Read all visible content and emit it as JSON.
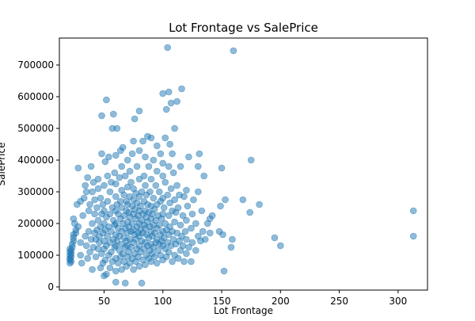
{
  "chart_data": {
    "type": "scatter",
    "title": "Lot Frontage vs SalePrice",
    "xlabel": "Lot Frontage",
    "ylabel": "SalePrice",
    "xlim": [
      12,
      325
    ],
    "ylim": [
      -10000,
      785000
    ],
    "xticks": [
      50,
      100,
      150,
      200,
      250,
      300
    ],
    "yticks": [
      0,
      100000,
      200000,
      300000,
      400000,
      500000,
      600000,
      700000
    ],
    "grid": false,
    "point_color": "#1f77b4",
    "point_opacity": 0.5,
    "points": [
      [
        21,
        75000
      ],
      [
        21,
        85000
      ],
      [
        21,
        90000
      ],
      [
        21,
        100000
      ],
      [
        21,
        110000
      ],
      [
        21,
        120000
      ],
      [
        22,
        80000
      ],
      [
        22,
        95000
      ],
      [
        22,
        105000
      ],
      [
        22,
        115000
      ],
      [
        23,
        125000
      ],
      [
        23,
        135000
      ],
      [
        24,
        215000
      ],
      [
        24,
        145000
      ],
      [
        24,
        155000
      ],
      [
        24,
        165000
      ],
      [
        25,
        200000
      ],
      [
        26,
        170000
      ],
      [
        26,
        180000
      ],
      [
        27,
        260000
      ],
      [
        28,
        190000
      ],
      [
        28,
        375000
      ],
      [
        30,
        100000
      ],
      [
        30,
        140000
      ],
      [
        30,
        270000
      ],
      [
        31,
        75000
      ],
      [
        32,
        225000
      ],
      [
        33,
        280000
      ],
      [
        34,
        160000
      ],
      [
        34,
        320000
      ],
      [
        35,
        130000
      ],
      [
        35,
        300000
      ],
      [
        36,
        90000
      ],
      [
        36,
        345000
      ],
      [
        37,
        175000
      ],
      [
        37,
        240000
      ],
      [
        38,
        110000
      ],
      [
        38,
        260000
      ],
      [
        39,
        150000
      ],
      [
        39,
        380000
      ],
      [
        40,
        55000
      ],
      [
        40,
        200000
      ],
      [
        40,
        300000
      ],
      [
        41,
        125000
      ],
      [
        41,
        330000
      ],
      [
        42,
        170000
      ],
      [
        42,
        230000
      ],
      [
        42,
        275000
      ],
      [
        43,
        95000
      ],
      [
        43,
        150000
      ],
      [
        44,
        180000
      ],
      [
        44,
        250000
      ],
      [
        45,
        120000
      ],
      [
        45,
        210000
      ],
      [
        45,
        310000
      ],
      [
        45,
        340000
      ],
      [
        46,
        140000
      ],
      [
        46,
        160000
      ],
      [
        47,
        60000
      ],
      [
        47,
        190000
      ],
      [
        47,
        280000
      ],
      [
        48,
        105000
      ],
      [
        48,
        230000
      ],
      [
        48,
        420000
      ],
      [
        48,
        540000
      ],
      [
        49,
        75000
      ],
      [
        49,
        170000
      ],
      [
        49,
        260000
      ],
      [
        50,
        35000
      ],
      [
        50,
        120000
      ],
      [
        50,
        145000
      ],
      [
        50,
        200000
      ],
      [
        50,
        240000
      ],
      [
        50,
        320000
      ],
      [
        51,
        85000
      ],
      [
        51,
        180000
      ],
      [
        51,
        395000
      ],
      [
        52,
        40000
      ],
      [
        52,
        130000
      ],
      [
        52,
        220000
      ],
      [
        52,
        590000
      ],
      [
        53,
        160000
      ],
      [
        53,
        270000
      ],
      [
        53,
        350000
      ],
      [
        54,
        100000
      ],
      [
        54,
        190000
      ],
      [
        54,
        410000
      ],
      [
        55,
        60000
      ],
      [
        55,
        140000
      ],
      [
        55,
        230000
      ],
      [
        55,
        300000
      ],
      [
        56,
        110000
      ],
      [
        56,
        175000
      ],
      [
        56,
        330000
      ],
      [
        57,
        80000
      ],
      [
        57,
        250000
      ],
      [
        57,
        500000
      ],
      [
        58,
        150000
      ],
      [
        58,
        210000
      ],
      [
        58,
        545000
      ],
      [
        59,
        125000
      ],
      [
        59,
        195000
      ],
      [
        59,
        360000
      ],
      [
        60,
        15000
      ],
      [
        60,
        50000
      ],
      [
        60,
        90000
      ],
      [
        60,
        130000
      ],
      [
        60,
        165000
      ],
      [
        60,
        200000
      ],
      [
        60,
        240000
      ],
      [
        60,
        285000
      ],
      [
        60,
        325000
      ],
      [
        60,
        415000
      ],
      [
        61,
        145000
      ],
      [
        61,
        260000
      ],
      [
        61,
        500000
      ],
      [
        62,
        75000
      ],
      [
        62,
        185000
      ],
      [
        62,
        230000
      ],
      [
        63,
        115000
      ],
      [
        63,
        160000
      ],
      [
        63,
        345000
      ],
      [
        64,
        95000
      ],
      [
        64,
        215000
      ],
      [
        64,
        270000
      ],
      [
        64,
        430000
      ],
      [
        65,
        55000
      ],
      [
        65,
        135000
      ],
      [
        65,
        175000
      ],
      [
        65,
        250000
      ],
      [
        65,
        305000
      ],
      [
        65,
        380000
      ],
      [
        66,
        105000
      ],
      [
        66,
        200000
      ],
      [
        66,
        440000
      ],
      [
        67,
        80000
      ],
      [
        67,
        155000
      ],
      [
        67,
        225000
      ],
      [
        67,
        290000
      ],
      [
        68,
        12000
      ],
      [
        68,
        125000
      ],
      [
        68,
        185000
      ],
      [
        68,
        350000
      ],
      [
        69,
        65000
      ],
      [
        69,
        145000
      ],
      [
        69,
        240000
      ],
      [
        69,
        270000
      ],
      [
        70,
        95000
      ],
      [
        70,
        130000
      ],
      [
        70,
        170000
      ],
      [
        70,
        205000
      ],
      [
        70,
        260000
      ],
      [
        70,
        315000
      ],
      [
        70,
        400000
      ],
      [
        71,
        110000
      ],
      [
        71,
        190000
      ],
      [
        71,
        235000
      ],
      [
        72,
        75000
      ],
      [
        72,
        150000
      ],
      [
        72,
        220000
      ],
      [
        72,
        285000
      ],
      [
        72,
        365000
      ],
      [
        73,
        125000
      ],
      [
        73,
        175000
      ],
      [
        73,
        330000
      ],
      [
        74,
        90000
      ],
      [
        74,
        200000
      ],
      [
        74,
        255000
      ],
      [
        74,
        420000
      ],
      [
        75,
        55000
      ],
      [
        75,
        140000
      ],
      [
        75,
        180000
      ],
      [
        75,
        230000
      ],
      [
        75,
        275000
      ],
      [
        75,
        310000
      ],
      [
        75,
        460000
      ],
      [
        76,
        105000
      ],
      [
        76,
        165000
      ],
      [
        76,
        245000
      ],
      [
        76,
        530000
      ],
      [
        77,
        80000
      ],
      [
        77,
        150000
      ],
      [
        77,
        215000
      ],
      [
        77,
        295000
      ],
      [
        78,
        120000
      ],
      [
        78,
        190000
      ],
      [
        78,
        265000
      ],
      [
        78,
        380000
      ],
      [
        79,
        95000
      ],
      [
        79,
        170000
      ],
      [
        79,
        225000
      ],
      [
        80,
        65000
      ],
      [
        80,
        130000
      ],
      [
        80,
        160000
      ],
      [
        80,
        200000
      ],
      [
        80,
        240000
      ],
      [
        80,
        285000
      ],
      [
        80,
        340000
      ],
      [
        80,
        430000
      ],
      [
        80,
        555000
      ],
      [
        81,
        110000
      ],
      [
        81,
        180000
      ],
      [
        81,
        255000
      ],
      [
        82,
        12000
      ],
      [
        82,
        145000
      ],
      [
        82,
        210000
      ],
      [
        82,
        300000
      ],
      [
        83,
        85000
      ],
      [
        83,
        170000
      ],
      [
        83,
        230000
      ],
      [
        83,
        460000
      ],
      [
        84,
        120000
      ],
      [
        84,
        195000
      ],
      [
        84,
        270000
      ],
      [
        84,
        350000
      ],
      [
        85,
        70000
      ],
      [
        85,
        140000
      ],
      [
        85,
        185000
      ],
      [
        85,
        240000
      ],
      [
        85,
        320000
      ],
      [
        85,
        410000
      ],
      [
        86,
        100000
      ],
      [
        86,
        165000
      ],
      [
        86,
        220000
      ],
      [
        86,
        290000
      ],
      [
        87,
        130000
      ],
      [
        87,
        205000
      ],
      [
        87,
        260000
      ],
      [
        87,
        475000
      ],
      [
        88,
        90000
      ],
      [
        88,
        155000
      ],
      [
        88,
        235000
      ],
      [
        88,
        380000
      ],
      [
        89,
        115000
      ],
      [
        89,
        190000
      ],
      [
        89,
        300000
      ],
      [
        90,
        80000
      ],
      [
        90,
        135000
      ],
      [
        90,
        175000
      ],
      [
        90,
        215000
      ],
      [
        90,
        255000
      ],
      [
        90,
        340000
      ],
      [
        90,
        470000
      ],
      [
        91,
        105000
      ],
      [
        91,
        160000
      ],
      [
        91,
        230000
      ],
      [
        92,
        125000
      ],
      [
        92,
        195000
      ],
      [
        92,
        280000
      ],
      [
        92,
        400000
      ],
      [
        93,
        95000
      ],
      [
        93,
        170000
      ],
      [
        93,
        245000
      ],
      [
        94,
        140000
      ],
      [
        94,
        210000
      ],
      [
        94,
        320000
      ],
      [
        95,
        75000
      ],
      [
        95,
        150000
      ],
      [
        95,
        185000
      ],
      [
        95,
        260000
      ],
      [
        95,
        365000
      ],
      [
        95,
        445000
      ],
      [
        96,
        115000
      ],
      [
        96,
        225000
      ],
      [
        97,
        135000
      ],
      [
        97,
        195000
      ],
      [
        97,
        300000
      ],
      [
        98,
        100000
      ],
      [
        98,
        165000
      ],
      [
        98,
        270000
      ],
      [
        98,
        420000
      ],
      [
        99,
        145000
      ],
      [
        99,
        215000
      ],
      [
        100,
        85000
      ],
      [
        100,
        130000
      ],
      [
        100,
        175000
      ],
      [
        100,
        230000
      ],
      [
        100,
        280000
      ],
      [
        100,
        350000
      ],
      [
        100,
        390000
      ],
      [
        100,
        610000
      ],
      [
        101,
        155000
      ],
      [
        101,
        250000
      ],
      [
        102,
        120000
      ],
      [
        102,
        200000
      ],
      [
        102,
        330000
      ],
      [
        102,
        470000
      ],
      [
        103,
        95000
      ],
      [
        103,
        180000
      ],
      [
        103,
        560000
      ],
      [
        104,
        140000
      ],
      [
        104,
        290000
      ],
      [
        104,
        755000
      ],
      [
        105,
        110000
      ],
      [
        105,
        165000
      ],
      [
        105,
        225000
      ],
      [
        105,
        380000
      ],
      [
        105,
        615000
      ],
      [
        106,
        190000
      ],
      [
        106,
        265000
      ],
      [
        106,
        450000
      ],
      [
        107,
        130000
      ],
      [
        107,
        310000
      ],
      [
        107,
        580000
      ],
      [
        108,
        80000
      ],
      [
        108,
        175000
      ],
      [
        108,
        240000
      ],
      [
        108,
        420000
      ],
      [
        109,
        150000
      ],
      [
        109,
        360000
      ],
      [
        110,
        100000
      ],
      [
        110,
        205000
      ],
      [
        110,
        275000
      ],
      [
        110,
        500000
      ],
      [
        111,
        135000
      ],
      [
        111,
        235000
      ],
      [
        112,
        170000
      ],
      [
        112,
        320000
      ],
      [
        112,
        585000
      ],
      [
        113,
        90000
      ],
      [
        113,
        250000
      ],
      [
        114,
        145000
      ],
      [
        114,
        290000
      ],
      [
        115,
        115000
      ],
      [
        115,
        195000
      ],
      [
        115,
        380000
      ],
      [
        116,
        160000
      ],
      [
        116,
        625000
      ],
      [
        117,
        130000
      ],
      [
        117,
        225000
      ],
      [
        118,
        80000
      ],
      [
        118,
        285000
      ],
      [
        119,
        175000
      ],
      [
        120,
        105000
      ],
      [
        120,
        150000
      ],
      [
        120,
        210000
      ],
      [
        120,
        305000
      ],
      [
        121,
        255000
      ],
      [
        122,
        125000
      ],
      [
        122,
        410000
      ],
      [
        124,
        80000
      ],
      [
        124,
        185000
      ],
      [
        125,
        140000
      ],
      [
        125,
        230000
      ],
      [
        126,
        275000
      ],
      [
        128,
        115000
      ],
      [
        128,
        200000
      ],
      [
        130,
        160000
      ],
      [
        130,
        300000
      ],
      [
        130,
        380000
      ],
      [
        131,
        420000
      ],
      [
        132,
        145000
      ],
      [
        133,
        240000
      ],
      [
        134,
        175000
      ],
      [
        135,
        350000
      ],
      [
        136,
        150000
      ],
      [
        138,
        200000
      ],
      [
        140,
        170000
      ],
      [
        140,
        215000
      ],
      [
        142,
        225000
      ],
      [
        148,
        175000
      ],
      [
        149,
        255000
      ],
      [
        150,
        375000
      ],
      [
        151,
        165000
      ],
      [
        152,
        50000
      ],
      [
        153,
        275000
      ],
      [
        158,
        125000
      ],
      [
        159,
        150000
      ],
      [
        160,
        745000
      ],
      [
        168,
        275000
      ],
      [
        174,
        235000
      ],
      [
        175,
        400000
      ],
      [
        182,
        260000
      ],
      [
        195,
        155000
      ],
      [
        200,
        130000
      ],
      [
        313,
        240000
      ],
      [
        313,
        160000
      ]
    ]
  }
}
